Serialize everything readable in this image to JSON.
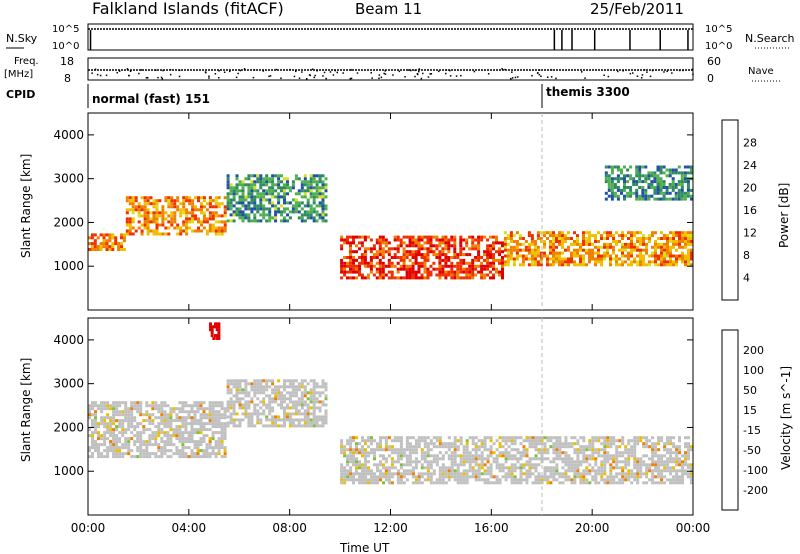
{
  "header": {
    "station": "Falkland Islands (fitACF)",
    "beam": "Beam 11",
    "date": "25/Feb/2011"
  },
  "panels": {
    "nsky": {
      "label": "N.Sky",
      "ticks_left": [
        "10^5",
        "10^0"
      ],
      "right_label": "N.Search",
      "ticks_right": [
        "10^5",
        "10^0"
      ]
    },
    "freq": {
      "label": "Freq.",
      "unit": "[MHz]",
      "ticks_left": [
        "18",
        "8"
      ],
      "right_label": "Nave",
      "ticks_right": [
        "60",
        "0"
      ]
    },
    "cpid": {
      "label": "CPID",
      "segments": [
        {
          "name": "normal (fast) 151",
          "start_hour": 0
        },
        {
          "name": "themis 3300",
          "start_hour": 18.0
        }
      ]
    }
  },
  "colors": {
    "power": [
      "#0000ee",
      "#2050a8",
      "#2f8a60",
      "#50b050",
      "#d8e020",
      "#f0c000",
      "#f08000",
      "#f03000",
      "#e00000"
    ],
    "velocity": [
      "#2040c0",
      "#2e60a0",
      "#2f8f6f",
      "#80c040",
      "#c0c0c0",
      "#e8c000",
      "#f08000",
      "#f04000",
      "#e00000"
    ]
  },
  "chart_data": [
    {
      "type": "heatmap",
      "name": "power",
      "ylabel": "Slant Range [km]",
      "xlabel": "",
      "xlim": [
        "00:00",
        "00:00"
      ],
      "x_ticks": [
        "00:00",
        "04:00",
        "08:00",
        "12:00",
        "16:00",
        "20:00",
        "00:00"
      ],
      "ylim": [
        0,
        4500
      ],
      "y_ticks": [
        1000,
        2000,
        3000,
        4000
      ],
      "colorbar": {
        "label": "Power [dB]",
        "ticks": [
          4,
          8,
          12,
          16,
          20,
          24,
          28
        ]
      },
      "echo_regions": [
        {
          "t_start": 0.0,
          "t_end": 1.5,
          "range_low": 1350,
          "range_high": 1750,
          "power_db": 24
        },
        {
          "t_start": 1.5,
          "t_end": 5.5,
          "range_low": 1700,
          "range_high": 2600,
          "power_db": 22
        },
        {
          "t_start": 5.5,
          "t_end": 9.5,
          "range_low": 2000,
          "range_high": 3100,
          "power_db": 10
        },
        {
          "t_start": 10.0,
          "t_end": 16.5,
          "range_low": 700,
          "range_high": 1700,
          "power_db": 27
        },
        {
          "t_start": 16.5,
          "t_end": 24.0,
          "range_low": 1000,
          "range_high": 1800,
          "power_db": 22
        },
        {
          "t_start": 20.5,
          "t_end": 24.0,
          "range_low": 2500,
          "range_high": 3300,
          "power_db": 9
        }
      ]
    },
    {
      "type": "heatmap",
      "name": "velocity",
      "ylabel": "Slant Range [km]",
      "xlabel": "Time UT",
      "xlim": [
        "00:00",
        "00:00"
      ],
      "x_ticks": [
        "00:00",
        "04:00",
        "08:00",
        "12:00",
        "16:00",
        "20:00",
        "00:00"
      ],
      "ylim": [
        0,
        4500
      ],
      "y_ticks": [
        1000,
        2000,
        3000,
        4000
      ],
      "colorbar": {
        "label": "Velocity [m s^-1]",
        "ticks": [
          200,
          100,
          50,
          15,
          -15,
          -50,
          -100,
          -200
        ]
      },
      "echo_regions": [
        {
          "t_start": 0.0,
          "t_end": 5.5,
          "range_low": 1300,
          "range_high": 2600,
          "velocity": 0
        },
        {
          "t_start": 5.5,
          "t_end": 9.5,
          "range_low": 2000,
          "range_high": 3100,
          "velocity": 0
        },
        {
          "t_start": 10.0,
          "t_end": 24.0,
          "range_low": 700,
          "range_high": 1800,
          "velocity": 0
        },
        {
          "t_start": 4.8,
          "t_end": 5.2,
          "range_low": 4000,
          "range_high": 4400,
          "velocity": -200
        }
      ]
    }
  ]
}
